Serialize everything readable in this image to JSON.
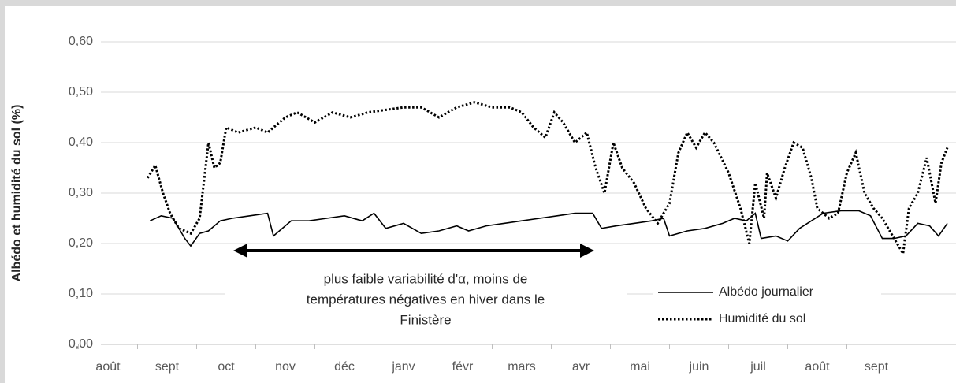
{
  "chart_data": {
    "type": "line",
    "y_label": "Albédo et humidité du sol (%)",
    "categories": [
      "août",
      "sept",
      "oct",
      "nov",
      "déc",
      "janv",
      "févr",
      "mars",
      "avr",
      "mai",
      "juin",
      "juil",
      "août",
      "sept"
    ],
    "ylim": [
      0,
      0.6
    ],
    "yticks": [
      {
        "value": 0,
        "label": "0,00"
      },
      {
        "value": 0.1,
        "label": "0,10"
      },
      {
        "value": 0.2,
        "label": "0,20"
      },
      {
        "value": 0.3,
        "label": "0,30"
      },
      {
        "value": 0.4,
        "label": "0,40"
      },
      {
        "value": 0.5,
        "label": "0,50"
      },
      {
        "value": 0.6,
        "label": "0,60"
      }
    ],
    "grid": true,
    "annotation": [
      "plus faible variabilité d'α, moins de",
      "températures négatives en hiver dans le",
      "Finistère"
    ],
    "series": [
      {
        "name": "Albédo journalier",
        "color": "#000000",
        "style": "solid",
        "x": [
          0.71,
          0.9,
          1.1,
          1.3,
          1.4,
          1.55,
          1.7,
          1.9,
          2.1,
          2.4,
          2.7,
          2.8,
          3.1,
          3.4,
          3.7,
          4.0,
          4.3,
          4.5,
          4.7,
          5.0,
          5.3,
          5.6,
          5.9,
          6.1,
          6.4,
          6.7,
          7.0,
          7.3,
          7.6,
          7.9,
          8.2,
          8.35,
          8.6,
          8.9,
          9.2,
          9.4,
          9.5,
          9.8,
          10.1,
          10.4,
          10.6,
          10.8,
          10.95,
          11.05,
          11.3,
          11.5,
          11.7,
          11.9,
          12.1,
          12.4,
          12.7,
          12.9,
          13.1,
          13.3,
          13.5,
          13.7,
          13.9,
          14.05,
          14.2
        ],
        "values": [
          0.245,
          0.255,
          0.25,
          0.21,
          0.195,
          0.22,
          0.225,
          0.245,
          0.25,
          0.255,
          0.26,
          0.215,
          0.245,
          0.245,
          0.25,
          0.255,
          0.245,
          0.26,
          0.23,
          0.24,
          0.22,
          0.225,
          0.235,
          0.225,
          0.235,
          0.24,
          0.245,
          0.25,
          0.255,
          0.26,
          0.26,
          0.23,
          0.235,
          0.24,
          0.245,
          0.25,
          0.215,
          0.225,
          0.23,
          0.24,
          0.25,
          0.245,
          0.26,
          0.21,
          0.215,
          0.205,
          0.23,
          0.245,
          0.26,
          0.265,
          0.265,
          0.255,
          0.21,
          0.21,
          0.215,
          0.24,
          0.235,
          0.215,
          0.24
        ]
      },
      {
        "name": "Humidité du sol",
        "color": "#000000",
        "style": "dotted",
        "x": [
          0.67,
          0.8,
          0.93,
          1.05,
          1.2,
          1.4,
          1.55,
          1.7,
          1.8,
          1.9,
          2.0,
          2.2,
          2.5,
          2.7,
          3.0,
          3.2,
          3.5,
          3.8,
          4.1,
          4.4,
          4.7,
          5.0,
          5.3,
          5.6,
          5.9,
          6.2,
          6.5,
          6.8,
          7.0,
          7.2,
          7.4,
          7.55,
          7.7,
          7.9,
          8.1,
          8.25,
          8.4,
          8.55,
          8.7,
          8.9,
          9.1,
          9.3,
          9.5,
          9.65,
          9.8,
          9.95,
          10.1,
          10.25,
          10.5,
          10.7,
          10.85,
          10.95,
          11.1,
          11.15,
          11.3,
          11.45,
          11.6,
          11.75,
          11.9,
          12.0,
          12.2,
          12.35,
          12.5,
          12.65,
          12.8,
          12.95,
          13.1,
          13.3,
          13.45,
          13.55,
          13.7,
          13.85,
          14.0,
          14.1,
          14.2
        ],
        "values": [
          0.33,
          0.355,
          0.3,
          0.26,
          0.23,
          0.22,
          0.25,
          0.4,
          0.35,
          0.36,
          0.43,
          0.42,
          0.43,
          0.42,
          0.45,
          0.46,
          0.44,
          0.46,
          0.45,
          0.46,
          0.465,
          0.47,
          0.47,
          0.45,
          0.47,
          0.48,
          0.47,
          0.47,
          0.46,
          0.43,
          0.41,
          0.46,
          0.44,
          0.4,
          0.42,
          0.35,
          0.3,
          0.4,
          0.35,
          0.32,
          0.27,
          0.24,
          0.28,
          0.38,
          0.42,
          0.39,
          0.42,
          0.4,
          0.34,
          0.27,
          0.2,
          0.32,
          0.25,
          0.34,
          0.29,
          0.35,
          0.4,
          0.39,
          0.33,
          0.27,
          0.25,
          0.26,
          0.34,
          0.38,
          0.3,
          0.27,
          0.25,
          0.21,
          0.18,
          0.27,
          0.3,
          0.37,
          0.28,
          0.36,
          0.39
        ]
      }
    ]
  }
}
